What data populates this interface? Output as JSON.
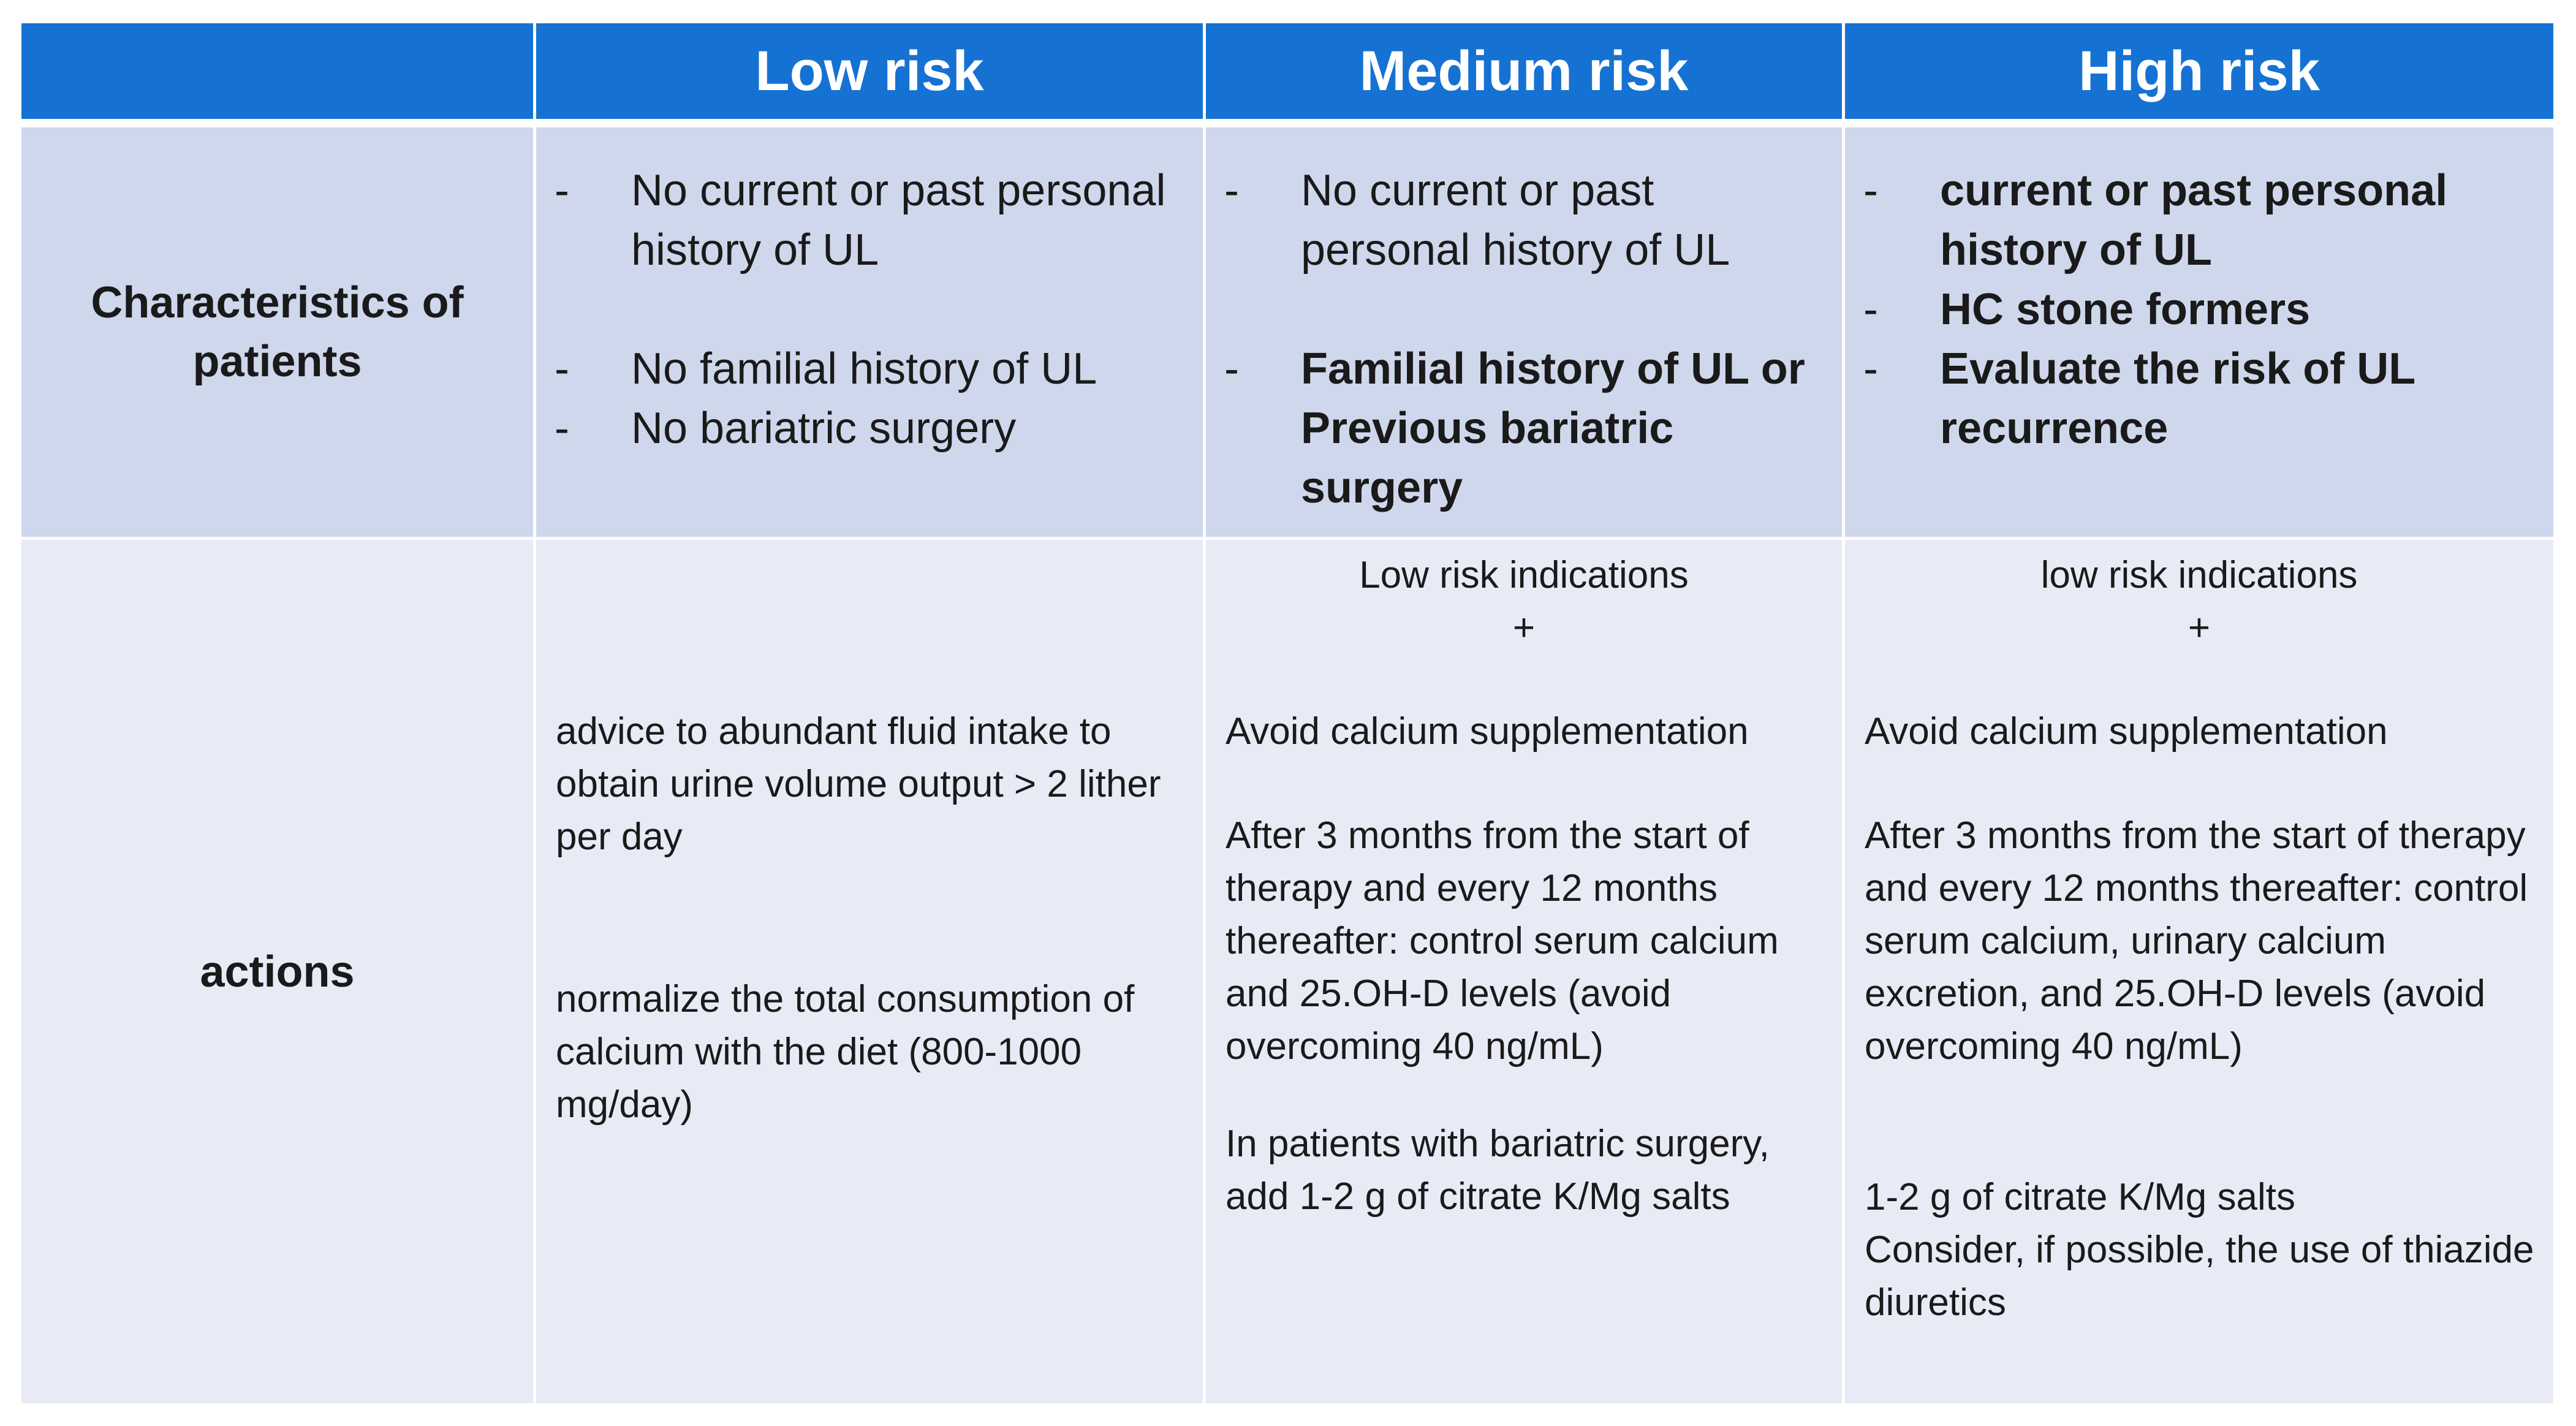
{
  "header": {
    "corner": "",
    "low": "Low risk",
    "medium": "Medium risk",
    "high": "High risk"
  },
  "rows": {
    "characteristics_label": "Characteristics of patients",
    "actions_label": "actions"
  },
  "characteristics": {
    "low": [
      "No current or past personal history of UL",
      "No familial history of UL",
      "No bariatric surgery"
    ],
    "medium": [
      "No current or past personal history of UL",
      "Familial history of UL  or Previous bariatric surgery"
    ],
    "high": [
      "current or past personal history of UL",
      "HC stone formers",
      "Evaluate the risk of UL recurrence"
    ],
    "dash": "-"
  },
  "actions": {
    "low": {
      "p1": "advice to abundant fluid intake to obtain urine volume output > 2 lither per day",
      "p2": "normalize  the total consumption of calcium with the diet (800-1000 mg/day)"
    },
    "medium": {
      "intro": "Low risk indications",
      "plus": "+",
      "p1": "Avoid calcium supplementation",
      "p2": "After 3 months from the start of therapy and every 12 months thereafter: control serum calcium and 25.OH-D levels (avoid overcoming 40 ng/mL)",
      "p3": "In patients with bariatric surgery, add 1-2 g of citrate K/Mg salts"
    },
    "high": {
      "intro": "low risk indications",
      "plus": "+",
      "p1": "Avoid calcium supplementation",
      "p2": "After 3 months from the start of therapy and every 12 months thereafter: control serum calcium, urinary calcium excretion,  and 25.OH-D levels (avoid overcoming 40 ng/mL)",
      "p3": "1-2 g of citrate K/Mg salts",
      "p4": "Consider, if possible, the use of thiazide diuretics"
    }
  }
}
